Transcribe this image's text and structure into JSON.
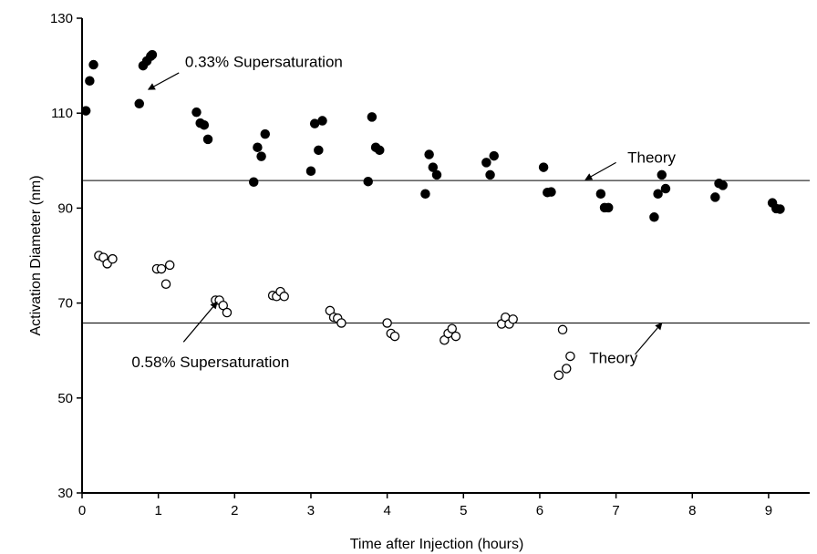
{
  "chart_data": {
    "type": "scatter",
    "xlabel": "Time after Injection (hours)",
    "ylabel": "Activation Diameter (nm)",
    "xlim": [
      0,
      9.3
    ],
    "ylim": [
      30,
      130
    ],
    "xticks": [
      0,
      1,
      2,
      3,
      4,
      5,
      6,
      7,
      8,
      9
    ],
    "yticks": [
      30,
      50,
      70,
      90,
      110,
      130
    ],
    "grid": false,
    "legend": "none",
    "series": [
      {
        "marker": "filled-circle",
        "color": "#000000",
        "points": [
          [
            0.05,
            110.5
          ],
          [
            0.1,
            116.8
          ],
          [
            0.15,
            120.2
          ],
          [
            0.75,
            112.0
          ],
          [
            0.8,
            120.0
          ],
          [
            0.85,
            121.0
          ],
          [
            0.9,
            122.0
          ],
          [
            0.92,
            122.3
          ],
          [
            1.5,
            110.2
          ],
          [
            1.55,
            107.9
          ],
          [
            1.6,
            107.5
          ],
          [
            1.65,
            104.5
          ],
          [
            2.25,
            95.5
          ],
          [
            2.3,
            102.8
          ],
          [
            2.35,
            100.9
          ],
          [
            2.4,
            105.6
          ],
          [
            3.0,
            97.8
          ],
          [
            3.05,
            107.8
          ],
          [
            3.1,
            102.2
          ],
          [
            3.15,
            108.4
          ],
          [
            3.75,
            95.6
          ],
          [
            3.8,
            109.2
          ],
          [
            3.85,
            102.8
          ],
          [
            3.9,
            102.2
          ],
          [
            4.5,
            93.0
          ],
          [
            4.55,
            101.3
          ],
          [
            4.6,
            98.6
          ],
          [
            4.65,
            97.0
          ],
          [
            5.3,
            99.6
          ],
          [
            5.35,
            97.0
          ],
          [
            5.4,
            101.0
          ],
          [
            6.05,
            98.6
          ],
          [
            6.1,
            93.3
          ],
          [
            6.15,
            93.4
          ],
          [
            6.8,
            93.0
          ],
          [
            6.85,
            90.1
          ],
          [
            6.9,
            90.1
          ],
          [
            7.5,
            88.1
          ],
          [
            7.55,
            93.0
          ],
          [
            7.6,
            97.0
          ],
          [
            7.65,
            94.1
          ],
          [
            8.3,
            92.3
          ],
          [
            8.35,
            95.2
          ],
          [
            8.4,
            94.8
          ],
          [
            9.05,
            91.1
          ],
          [
            9.1,
            89.9
          ],
          [
            9.15,
            89.8
          ]
        ]
      },
      {
        "marker": "open-circle",
        "color": "#000000",
        "points": [
          [
            0.22,
            80.0
          ],
          [
            0.28,
            79.6
          ],
          [
            0.33,
            78.3
          ],
          [
            0.4,
            79.3
          ],
          [
            0.98,
            77.2
          ],
          [
            1.04,
            77.2
          ],
          [
            1.1,
            74.0
          ],
          [
            1.15,
            78.0
          ],
          [
            1.75,
            70.6
          ],
          [
            1.8,
            70.6
          ],
          [
            1.85,
            69.5
          ],
          [
            1.9,
            68.0
          ],
          [
            2.5,
            71.6
          ],
          [
            2.55,
            71.4
          ],
          [
            2.6,
            72.4
          ],
          [
            2.65,
            71.4
          ],
          [
            3.25,
            68.4
          ],
          [
            3.3,
            67.0
          ],
          [
            3.35,
            66.8
          ],
          [
            3.4,
            65.8
          ],
          [
            4.0,
            65.8
          ],
          [
            4.05,
            63.6
          ],
          [
            4.1,
            63.0
          ],
          [
            4.75,
            62.2
          ],
          [
            4.8,
            63.6
          ],
          [
            4.85,
            64.6
          ],
          [
            4.9,
            63.0
          ],
          [
            5.5,
            65.6
          ],
          [
            5.55,
            67.0
          ],
          [
            5.6,
            65.6
          ],
          [
            5.65,
            66.6
          ],
          [
            6.25,
            54.8
          ],
          [
            6.3,
            64.4
          ],
          [
            6.35,
            56.2
          ],
          [
            6.4,
            58.8
          ]
        ]
      }
    ],
    "reference_lines": [
      {
        "y": 95.8
      },
      {
        "y": 65.8
      }
    ],
    "annotations": [
      {
        "id": "sup033",
        "text": "0.33% Supersaturation",
        "x": 1.35,
        "y": 120.9,
        "arrow_to": [
          0.87,
          115.0
        ],
        "arrow_from": [
          1.27,
          118.5
        ]
      },
      {
        "id": "sup058",
        "text": "0.58% Supersaturation",
        "x": 0.65,
        "y": 57.6,
        "arrow_to": [
          1.77,
          70.2
        ],
        "arrow_from": [
          1.33,
          61.8
        ]
      },
      {
        "id": "theory1",
        "text": "Theory",
        "x": 7.15,
        "y": 100.7,
        "arrow_to": [
          6.6,
          96.0
        ],
        "arrow_from": [
          7.0,
          99.6
        ]
      },
      {
        "id": "theory2",
        "text": "Theory",
        "x": 6.65,
        "y": 58.5,
        "arrow_to": [
          7.6,
          65.8
        ],
        "arrow_from": [
          7.25,
          59.2
        ]
      }
    ]
  }
}
